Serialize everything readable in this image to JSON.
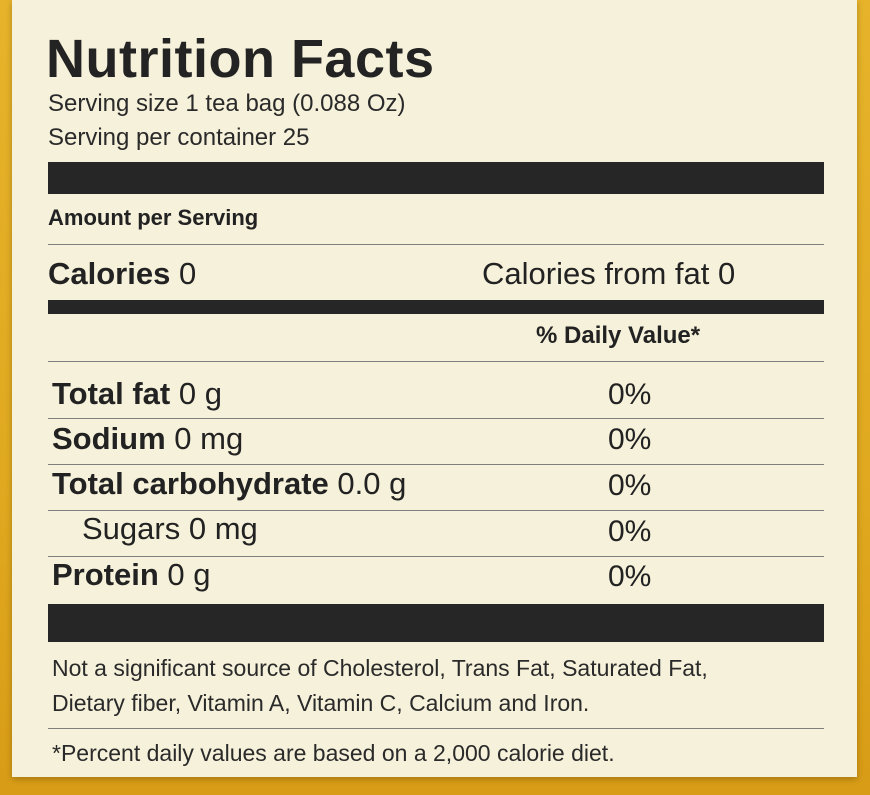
{
  "title": "Nutrition Facts",
  "serving_size": "Serving size 1 tea bag (0.088 Oz)",
  "servings_per_container": "Serving per container 25",
  "amount_per_serving": "Amount per Serving",
  "calories": {
    "label": "Calories",
    "value": "0"
  },
  "calories_from_fat": "Calories from fat 0",
  "daily_value_header": "% Daily Value*",
  "nutrients": [
    {
      "label": "Total fat",
      "amount": "0 g",
      "dv": "0%"
    },
    {
      "label": "Sodium",
      "amount": "0 mg",
      "dv": "0%"
    },
    {
      "label": "Total carbohydrate",
      "amount": "0.0 g",
      "dv": "0%"
    },
    {
      "label": "Sugars",
      "amount": "0 mg",
      "dv": "0%"
    },
    {
      "label": "Protein",
      "amount": "0 g",
      "dv": "0%"
    }
  ],
  "footnote_line1": "Not a significant source of Cholesterol, Trans Fat, Saturated Fat,",
  "footnote_line2": "Dietary fiber, Vitamin A, Vitamin C, Calcium and Iron.",
  "footnote_dv": "*Percent daily values are based on a 2,000 calorie diet."
}
